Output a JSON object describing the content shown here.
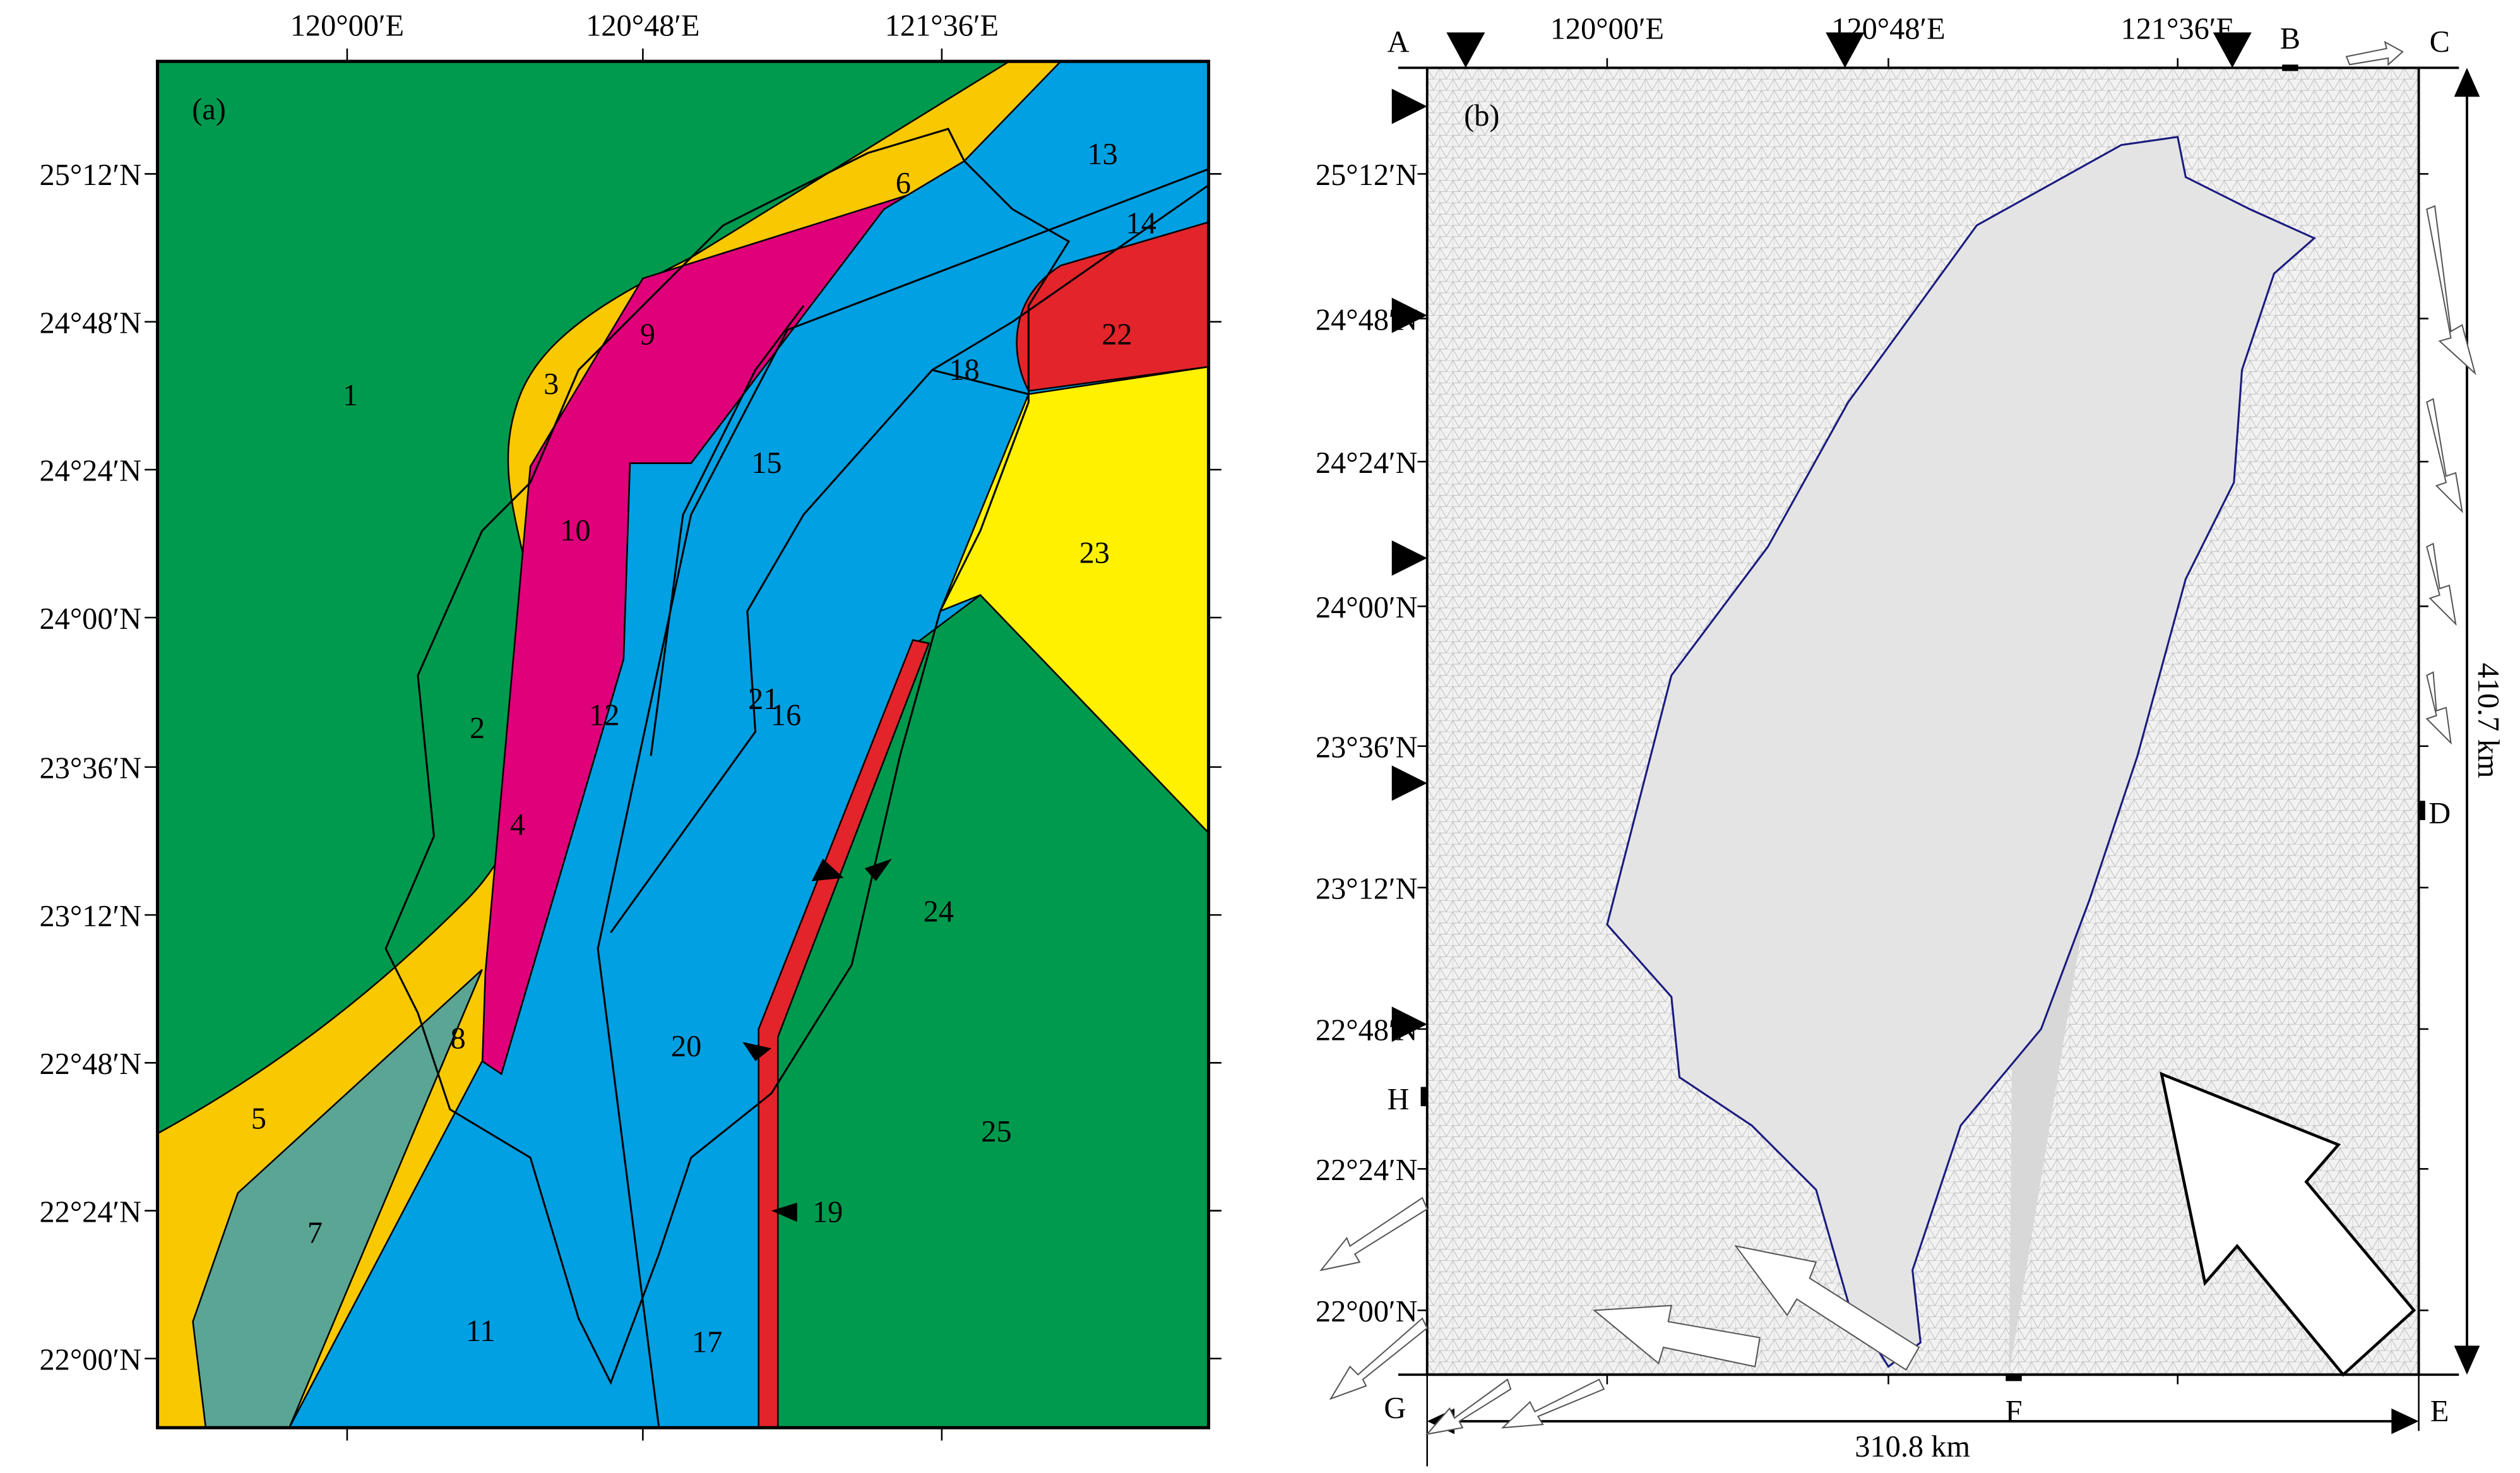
{
  "panel_a": {
    "label": "(a)",
    "x_ticks": [
      "120°00′E",
      "120°48′E",
      "121°36′E"
    ],
    "y_ticks": [
      "25°12′N",
      "24°48′N",
      "24°24′N",
      "24°00′N",
      "23°36′N",
      "23°12′N",
      "22°48′N",
      "22°24′N",
      "22°00′N"
    ],
    "regions": [
      "1",
      "2",
      "3",
      "4",
      "5",
      "6",
      "7",
      "8",
      "9",
      "10",
      "11",
      "12",
      "13",
      "14",
      "15",
      "16",
      "17",
      "18",
      "19",
      "20",
      "21",
      "22",
      "23",
      "24",
      "25"
    ]
  },
  "panel_b": {
    "label": "(b)",
    "x_ticks": [
      "120°00′E",
      "120°48′E",
      "121°36′E"
    ],
    "y_ticks": [
      "25°12′N",
      "24°48′N",
      "24°24′N",
      "24°00′N",
      "23°36′N",
      "23°12′N",
      "22°48′N",
      "22°24′N",
      "22°00′N"
    ],
    "corners": [
      "A",
      "B",
      "C",
      "D",
      "E",
      "F",
      "G",
      "H"
    ],
    "width_label": "310.8 km",
    "height_label": "410.7 km"
  }
}
